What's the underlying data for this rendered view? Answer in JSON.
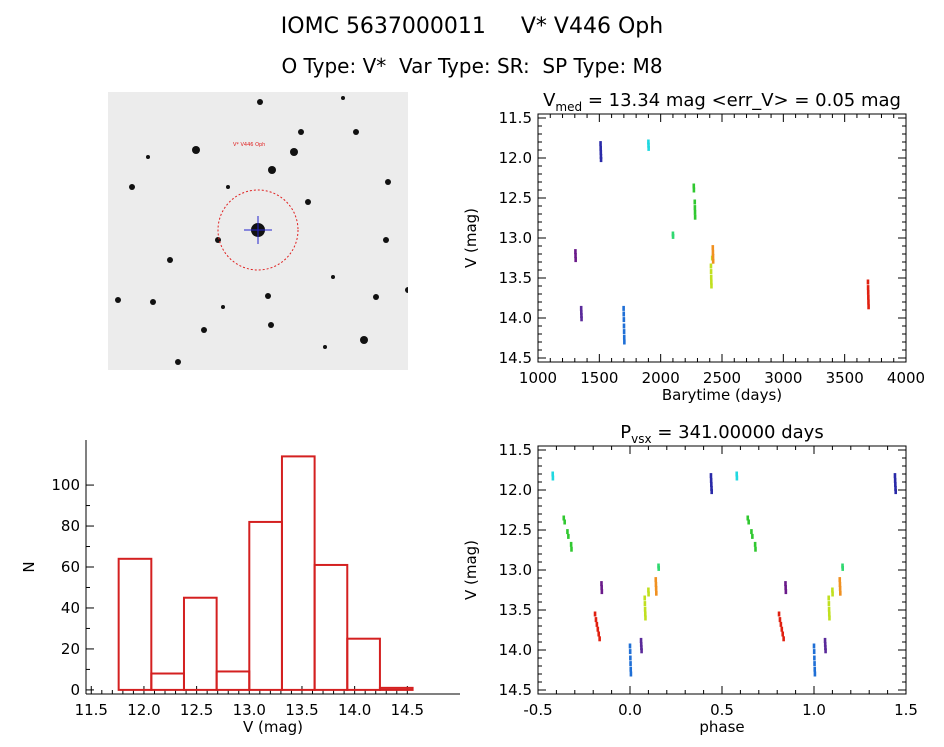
{
  "header": {
    "title_line1": "IOMC 5637000011     V* V446 Oph",
    "title_line2": "O Type: V*  Var Type: SR:  SP Type: M8"
  },
  "colors": {
    "histogram": "#d42020",
    "field_marker": "#e02020",
    "field_crosshair": "#2222cc",
    "phase_palette": [
      "#e02010",
      "#e85020",
      "#f09020",
      "#f0d020",
      "#a0e020",
      "#40d840",
      "#20d8d8",
      "#1060d0",
      "#201890",
      "#401060"
    ]
  },
  "chart_data": [
    {
      "type": "scatter",
      "id": "lightcurve",
      "title": "V_med = 13.34 mag <err_V> = 0.05 mag",
      "title_parts": {
        "main": "V",
        "sub": "med",
        "rest": " = 13.34 mag <err_V> = 0.05 mag"
      },
      "xlabel": "Barytime (days)",
      "ylabel": "V (mag)",
      "xlim": [
        1000,
        4000
      ],
      "ylim": [
        14.55,
        11.45
      ],
      "xticks": [
        1000,
        1500,
        2000,
        2500,
        3000,
        3500,
        4000
      ],
      "yticks": [
        11.5,
        12.0,
        12.5,
        13.0,
        13.5,
        14.0,
        14.5
      ],
      "groups": [
        {
          "color": "#6a1a8a",
          "points": [
            [
              1305,
              13.17
            ],
            [
              1306,
              13.22
            ],
            [
              1307,
              13.27
            ]
          ]
        },
        {
          "color": "#5a2a9a",
          "points": [
            [
              1352,
              13.88
            ],
            [
              1353,
              13.93
            ],
            [
              1354,
              13.97
            ],
            [
              1355,
              14.01
            ]
          ]
        },
        {
          "color": "#2a2aa8",
          "points": [
            [
              1510,
              11.82
            ],
            [
              1511,
              11.88
            ],
            [
              1512,
              11.93
            ],
            [
              1513,
              11.98
            ],
            [
              1514,
              12.02
            ]
          ]
        },
        {
          "color": "#1f6fd6",
          "points": [
            [
              1698,
              13.88
            ],
            [
              1699,
              13.95
            ],
            [
              1700,
              14.02
            ],
            [
              1701,
              14.1
            ],
            [
              1702,
              14.17
            ],
            [
              1703,
              14.24
            ],
            [
              1704,
              14.3
            ]
          ]
        },
        {
          "color": "#20d8e0",
          "points": [
            [
              1900,
              11.8
            ],
            [
              1901,
              11.84
            ],
            [
              1902,
              11.88
            ]
          ]
        },
        {
          "color": "#30d870",
          "points": [
            [
              2100,
              12.95
            ],
            [
              2101,
              12.98
            ]
          ]
        },
        {
          "color": "#30c830",
          "points": [
            [
              2270,
              12.35
            ],
            [
              2271,
              12.4
            ],
            [
              2278,
              12.55
            ],
            [
              2279,
              12.62
            ],
            [
              2280,
              12.68
            ],
            [
              2281,
              12.74
            ]
          ]
        },
        {
          "color": "#c0e020",
          "points": [
            [
              2410,
              13.35
            ],
            [
              2411,
              13.42
            ],
            [
              2412,
              13.49
            ],
            [
              2413,
              13.55
            ],
            [
              2414,
              13.6
            ],
            [
              2420,
              13.25
            ]
          ]
        },
        {
          "color": "#f09020",
          "points": [
            [
              2425,
              13.12
            ],
            [
              2426,
              13.18
            ],
            [
              2427,
              13.23
            ],
            [
              2428,
              13.29
            ]
          ]
        },
        {
          "color": "#e02010",
          "points": [
            [
              3690,
              13.55
            ],
            [
              3691,
              13.62
            ],
            [
              3692,
              13.68
            ],
            [
              3693,
              13.74
            ],
            [
              3694,
              13.8
            ],
            [
              3695,
              13.86
            ]
          ]
        }
      ]
    },
    {
      "type": "bar",
      "id": "histogram",
      "xlabel": "V (mag)",
      "ylabel": "N",
      "xlim": [
        11.45,
        15.0
      ],
      "ylim": [
        -2,
        122
      ],
      "xticks": [
        11.5,
        12.0,
        12.5,
        13.0,
        13.5,
        14.0,
        14.5
      ],
      "yticks": [
        0,
        20,
        40,
        60,
        80,
        100
      ],
      "bin_edges": [
        11.76,
        12.07,
        12.38,
        12.69,
        13.0,
        13.31,
        13.62,
        13.93,
        14.24,
        14.55
      ],
      "counts": [
        64,
        8,
        45,
        9,
        82,
        114,
        61,
        25,
        1
      ]
    },
    {
      "type": "scatter",
      "id": "phased",
      "title": "P_vsx = 341.00000 days",
      "title_parts": {
        "main": "P",
        "sub": "vsx",
        "rest": " = 341.00000 days"
      },
      "xlabel": "phase",
      "ylabel": "V (mag)",
      "xlim": [
        -0.5,
        1.5
      ],
      "ylim": [
        14.55,
        11.45
      ],
      "xticks": [
        -0.5,
        0.0,
        0.5,
        1.0,
        1.5
      ],
      "yticks": [
        11.5,
        12.0,
        12.5,
        13.0,
        13.5,
        14.0,
        14.5
      ],
      "groups": [
        {
          "color": "#20d8e0",
          "points": [
            [
              -0.42,
              11.8
            ],
            [
              -0.419,
              11.85
            ],
            [
              0.58,
              11.8
            ],
            [
              0.581,
              11.85
            ]
          ]
        },
        {
          "color": "#30c830",
          "points": [
            [
              -0.36,
              12.35
            ],
            [
              -0.355,
              12.4
            ],
            [
              -0.34,
              12.52
            ],
            [
              -0.335,
              12.58
            ],
            [
              -0.32,
              12.68
            ],
            [
              -0.318,
              12.74
            ],
            [
              0.64,
              12.35
            ],
            [
              0.645,
              12.4
            ],
            [
              0.66,
              12.52
            ],
            [
              0.665,
              12.58
            ],
            [
              0.68,
              12.68
            ],
            [
              0.682,
              12.74
            ]
          ]
        },
        {
          "color": "#e02010",
          "points": [
            [
              -0.19,
              13.55
            ],
            [
              -0.185,
              13.62
            ],
            [
              -0.18,
              13.68
            ],
            [
              -0.175,
              13.74
            ],
            [
              -0.17,
              13.8
            ],
            [
              -0.165,
              13.86
            ],
            [
              0.81,
              13.55
            ],
            [
              0.815,
              13.62
            ],
            [
              0.82,
              13.68
            ],
            [
              0.825,
              13.74
            ],
            [
              0.83,
              13.8
            ],
            [
              0.835,
              13.86
            ]
          ]
        },
        {
          "color": "#6a1a8a",
          "points": [
            [
              -0.155,
              13.17
            ],
            [
              -0.154,
              13.22
            ],
            [
              -0.153,
              13.27
            ],
            [
              0.845,
              13.17
            ],
            [
              0.846,
              13.22
            ],
            [
              0.847,
              13.27
            ]
          ]
        },
        {
          "color": "#1f6fd6",
          "points": [
            [
              0.0,
              13.95
            ],
            [
              0.001,
              14.02
            ],
            [
              0.002,
              14.1
            ],
            [
              0.003,
              14.17
            ],
            [
              0.004,
              14.24
            ],
            [
              0.005,
              14.3
            ],
            [
              1.0,
              13.95
            ],
            [
              1.001,
              14.02
            ],
            [
              1.002,
              14.1
            ],
            [
              1.003,
              14.17
            ],
            [
              1.004,
              14.24
            ],
            [
              1.005,
              14.3
            ]
          ]
        },
        {
          "color": "#5a2a9a",
          "points": [
            [
              0.06,
              13.88
            ],
            [
              0.061,
              13.93
            ],
            [
              0.062,
              13.97
            ],
            [
              0.063,
              14.01
            ],
            [
              1.06,
              13.88
            ],
            [
              1.061,
              13.93
            ],
            [
              1.062,
              13.97
            ],
            [
              1.063,
              14.01
            ]
          ]
        },
        {
          "color": "#c0e020",
          "points": [
            [
              0.08,
              13.35
            ],
            [
              0.081,
              13.42
            ],
            [
              0.082,
              13.49
            ],
            [
              0.083,
              13.55
            ],
            [
              0.084,
              13.6
            ],
            [
              0.1,
              13.25
            ],
            [
              0.101,
              13.3
            ],
            [
              1.08,
              13.35
            ],
            [
              1.081,
              13.42
            ],
            [
              1.082,
              13.49
            ],
            [
              1.083,
              13.55
            ],
            [
              1.084,
              13.6
            ],
            [
              1.1,
              13.25
            ],
            [
              1.101,
              13.3
            ]
          ]
        },
        {
          "color": "#f09020",
          "points": [
            [
              0.14,
              13.12
            ],
            [
              0.141,
              13.18
            ],
            [
              0.142,
              13.23
            ],
            [
              0.143,
              13.29
            ],
            [
              1.14,
              13.12
            ],
            [
              1.141,
              13.18
            ],
            [
              1.142,
              13.23
            ],
            [
              1.143,
              13.29
            ]
          ]
        },
        {
          "color": "#30d870",
          "points": [
            [
              0.155,
              12.95
            ],
            [
              0.156,
              12.98
            ],
            [
              1.155,
              12.95
            ],
            [
              1.156,
              12.98
            ]
          ]
        },
        {
          "color": "#2a2aa8",
          "points": [
            [
              0.44,
              11.82
            ],
            [
              0.441,
              11.88
            ],
            [
              0.442,
              11.93
            ],
            [
              0.443,
              11.98
            ],
            [
              0.444,
              12.02
            ],
            [
              1.44,
              11.82
            ],
            [
              1.441,
              11.88
            ],
            [
              1.442,
              11.93
            ],
            [
              1.443,
              11.98
            ],
            [
              1.444,
              12.02
            ]
          ]
        }
      ]
    }
  ],
  "field_image": {
    "target_label": "V* V446 Oph",
    "background": "#ececec",
    "star_color": "#111111"
  }
}
